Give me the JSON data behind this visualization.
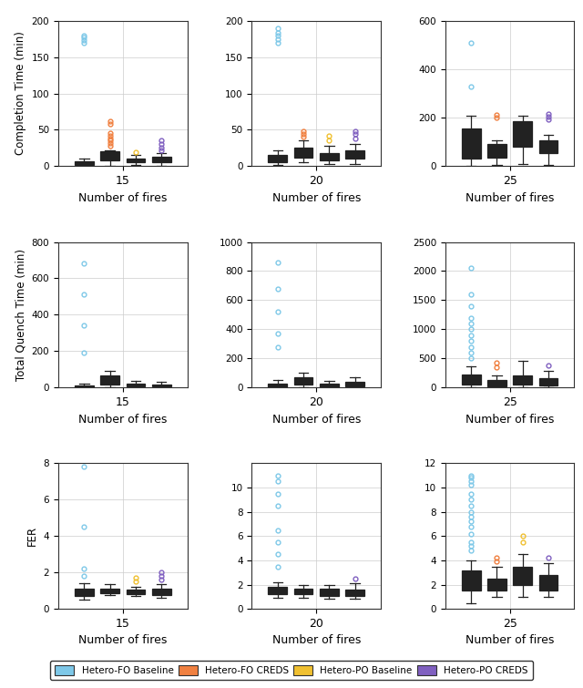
{
  "colors": {
    "fo_baseline": "#7EC8E8",
    "fo_creds": "#F08040",
    "po_baseline": "#F0C030",
    "po_creds": "#8060C0"
  },
  "legend_labels": [
    "Hetero-FO Baseline",
    "Hetero-FO CREDS",
    "Hetero-PO Baseline",
    "Hetero-PO CREDS"
  ],
  "row_ylabels": [
    "Completion Time (min)",
    "Total Quench Time (min)",
    "FER"
  ],
  "col_xtick_labels": [
    "15",
    "20",
    "25"
  ],
  "xlabel": "Number of fires",
  "plots": {
    "r0c0": {
      "fo_baseline": {
        "whislo": 0,
        "q1": 2,
        "med": 4,
        "q3": 7,
        "whishi": 10,
        "fliers": [
          170,
          173,
          177,
          180
        ]
      },
      "fo_creds": {
        "whislo": 0,
        "q1": 8,
        "med": 12,
        "q3": 20,
        "whishi": 22,
        "fliers": [
          28,
          32,
          35,
          38,
          42,
          45,
          58,
          62
        ]
      },
      "po_baseline": {
        "whislo": 2,
        "q1": 5,
        "med": 8,
        "q3": 11,
        "whishi": 16,
        "fliers": [
          19
        ]
      },
      "po_creds": {
        "whislo": 0,
        "q1": 5,
        "med": 8,
        "q3": 13,
        "whishi": 18,
        "fliers": [
          22,
          25,
          30,
          35
        ]
      }
    },
    "r0c1": {
      "fo_baseline": {
        "whislo": 2,
        "q1": 6,
        "med": 10,
        "q3": 16,
        "whishi": 22,
        "fliers": [
          170,
          175,
          180,
          183,
          190
        ]
      },
      "fo_creds": {
        "whislo": 5,
        "q1": 12,
        "med": 18,
        "q3": 26,
        "whishi": 36,
        "fliers": [
          40,
          44,
          48
        ]
      },
      "po_baseline": {
        "whislo": 3,
        "q1": 8,
        "med": 13,
        "q3": 18,
        "whishi": 28,
        "fliers": [
          36,
          42
        ]
      },
      "po_creds": {
        "whislo": 3,
        "q1": 10,
        "med": 15,
        "q3": 22,
        "whishi": 30,
        "fliers": [
          38,
          44,
          48
        ]
      }
    },
    "r0c2": {
      "fo_baseline": {
        "whislo": 0,
        "q1": 30,
        "med": 90,
        "q3": 155,
        "whishi": 210,
        "fliers": [
          330,
          510
        ]
      },
      "fo_creds": {
        "whislo": 5,
        "q1": 35,
        "med": 65,
        "q3": 90,
        "whishi": 108,
        "fliers": [
          200,
          212
        ]
      },
      "po_baseline": {
        "whislo": 10,
        "q1": 80,
        "med": 140,
        "q3": 185,
        "whishi": 210,
        "fliers": []
      },
      "po_creds": {
        "whislo": 5,
        "q1": 55,
        "med": 85,
        "q3": 108,
        "whishi": 130,
        "fliers": [
          195,
          205,
          215
        ]
      }
    },
    "r1c0": {
      "fo_baseline": {
        "whislo": 0,
        "q1": 2,
        "med": 5,
        "q3": 10,
        "whishi": 20,
        "fliers": [
          190,
          340,
          510,
          680
        ]
      },
      "fo_creds": {
        "whislo": 0,
        "q1": 15,
        "med": 35,
        "q3": 65,
        "whishi": 90,
        "fliers": []
      },
      "po_baseline": {
        "whislo": 0,
        "q1": 5,
        "med": 10,
        "q3": 20,
        "whishi": 38,
        "fliers": []
      },
      "po_creds": {
        "whislo": 0,
        "q1": 5,
        "med": 10,
        "q3": 18,
        "whishi": 32,
        "fliers": []
      }
    },
    "r1c1": {
      "fo_baseline": {
        "whislo": 0,
        "q1": 5,
        "med": 12,
        "q3": 28,
        "whishi": 55,
        "fliers": [
          280,
          370,
          520,
          680,
          860
        ]
      },
      "fo_creds": {
        "whislo": 0,
        "q1": 20,
        "med": 40,
        "q3": 70,
        "whishi": 100,
        "fliers": []
      },
      "po_baseline": {
        "whislo": 0,
        "q1": 5,
        "med": 15,
        "q3": 28,
        "whishi": 48,
        "fliers": []
      },
      "po_creds": {
        "whislo": 0,
        "q1": 10,
        "med": 22,
        "q3": 42,
        "whishi": 72,
        "fliers": []
      }
    },
    "r1c2": {
      "fo_baseline": {
        "whislo": 0,
        "q1": 50,
        "med": 130,
        "q3": 230,
        "whishi": 360,
        "fliers": [
          500,
          600,
          700,
          800,
          900,
          1000,
          1100,
          1200,
          1400,
          1600,
          2050
        ]
      },
      "fo_creds": {
        "whislo": 0,
        "q1": 20,
        "med": 65,
        "q3": 130,
        "whishi": 215,
        "fliers": [
          350,
          420
        ]
      },
      "po_baseline": {
        "whislo": 0,
        "q1": 50,
        "med": 110,
        "q3": 215,
        "whishi": 460,
        "fliers": []
      },
      "po_creds": {
        "whislo": 0,
        "q1": 30,
        "med": 85,
        "q3": 155,
        "whishi": 290,
        "fliers": [
          380
        ]
      }
    },
    "r2c0": {
      "fo_baseline": {
        "whislo": 0.5,
        "q1": 0.7,
        "med": 0.85,
        "q3": 1.1,
        "whishi": 1.4,
        "fliers": [
          1.8,
          2.2,
          4.5,
          7.8
        ]
      },
      "fo_creds": {
        "whislo": 0.75,
        "q1": 0.88,
        "med": 1.0,
        "q3": 1.1,
        "whishi": 1.35,
        "fliers": []
      },
      "po_baseline": {
        "whislo": 0.7,
        "q1": 0.82,
        "med": 0.95,
        "q3": 1.05,
        "whishi": 1.2,
        "fliers": [
          1.5,
          1.7
        ]
      },
      "po_creds": {
        "whislo": 0.6,
        "q1": 0.78,
        "med": 0.95,
        "q3": 1.1,
        "whishi": 1.38,
        "fliers": [
          1.6,
          1.8,
          2.0
        ]
      }
    },
    "r2c1": {
      "fo_baseline": {
        "whislo": 0.9,
        "q1": 1.2,
        "med": 1.5,
        "q3": 1.85,
        "whishi": 2.2,
        "fliers": [
          3.5,
          4.5,
          5.5,
          6.5,
          8.5,
          9.5,
          10.5,
          11.0
        ]
      },
      "fo_creds": {
        "whislo": 0.9,
        "q1": 1.2,
        "med": 1.45,
        "q3": 1.65,
        "whishi": 2.0,
        "fliers": []
      },
      "po_baseline": {
        "whislo": 0.85,
        "q1": 1.1,
        "med": 1.35,
        "q3": 1.65,
        "whishi": 2.0,
        "fliers": []
      },
      "po_creds": {
        "whislo": 0.85,
        "q1": 1.05,
        "med": 1.3,
        "q3": 1.6,
        "whishi": 2.1,
        "fliers": [
          2.5
        ]
      }
    },
    "r2c2": {
      "fo_baseline": {
        "whislo": 0.5,
        "q1": 1.5,
        "med": 2.0,
        "q3": 3.2,
        "whishi": 4.0,
        "fliers": [
          4.8,
          5.2,
          5.5,
          6.2,
          6.8,
          7.2,
          7.6,
          8.0,
          8.5,
          9.0,
          9.5,
          10.2,
          10.5,
          10.8,
          11.0
        ]
      },
      "fo_creds": {
        "whislo": 1.0,
        "q1": 1.5,
        "med": 1.9,
        "q3": 2.5,
        "whishi": 3.5,
        "fliers": [
          3.9,
          4.2
        ]
      },
      "po_baseline": {
        "whislo": 1.0,
        "q1": 2.0,
        "med": 2.5,
        "q3": 3.5,
        "whishi": 4.5,
        "fliers": [
          5.5,
          6.0
        ]
      },
      "po_creds": {
        "whislo": 1.0,
        "q1": 1.5,
        "med": 2.0,
        "q3": 2.8,
        "whishi": 3.8,
        "fliers": [
          4.2
        ]
      }
    }
  },
  "ylims": [
    [
      [
        0,
        200
      ],
      [
        0,
        200
      ],
      [
        0,
        600
      ]
    ],
    [
      [
        0,
        800
      ],
      [
        0,
        1000
      ],
      [
        0,
        2500
      ]
    ],
    [
      [
        0,
        8
      ],
      [
        0,
        12
      ],
      [
        0,
        12
      ]
    ]
  ],
  "yticks": [
    [
      [
        0,
        50,
        100,
        150,
        200
      ],
      [
        0,
        50,
        100,
        150,
        200
      ],
      [
        0,
        200,
        400,
        600
      ]
    ],
    [
      [
        0,
        200,
        400,
        600,
        800
      ],
      [
        0,
        200,
        400,
        600,
        800,
        1000
      ],
      [
        0,
        500,
        1000,
        1500,
        2000,
        2500
      ]
    ],
    [
      [
        0,
        2,
        4,
        6,
        8
      ],
      [
        0,
        2,
        4,
        6,
        8,
        10
      ],
      [
        0,
        2,
        4,
        6,
        8,
        10,
        12
      ]
    ]
  ]
}
